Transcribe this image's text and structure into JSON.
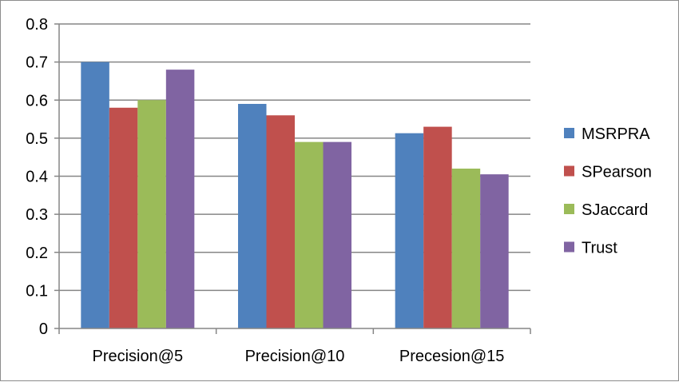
{
  "chart_data": {
    "type": "bar",
    "categories": [
      "Precision@5",
      "Precision@10",
      "Precesion@15"
    ],
    "series": [
      {
        "name": "MSRPRA",
        "values": [
          0.7,
          0.59,
          0.513
        ],
        "color": "#4f81bd"
      },
      {
        "name": "SPearson",
        "values": [
          0.58,
          0.56,
          0.53
        ],
        "color": "#c0504d"
      },
      {
        "name": "SJaccard",
        "values": [
          0.6,
          0.49,
          0.42
        ],
        "color": "#9bbb59"
      },
      {
        "name": "Trust",
        "values": [
          0.68,
          0.49,
          0.405
        ],
        "color": "#8064a2"
      }
    ],
    "y_ticks": [
      "0",
      "0.1",
      "0.2",
      "0.3",
      "0.4",
      "0.5",
      "0.6",
      "0.7",
      "0.8"
    ],
    "ylim": [
      0,
      0.8
    ],
    "grid": true,
    "legend_position": "right"
  }
}
